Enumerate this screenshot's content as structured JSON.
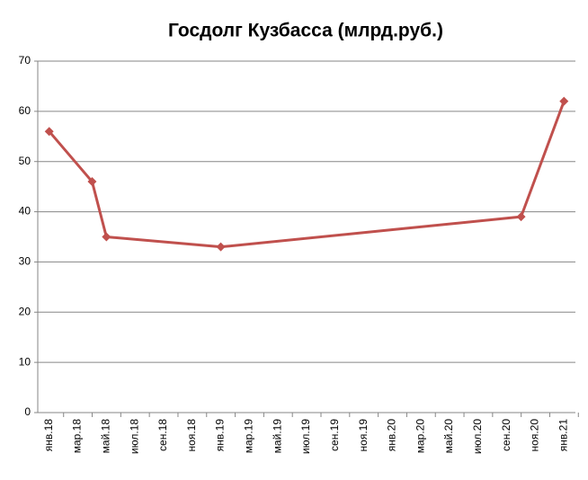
{
  "chart_data": {
    "type": "line",
    "title": "Госдолг Кузбасса (млрд.руб.)",
    "x": [
      "2018-01",
      "2018-04",
      "2018-05",
      "2019-01",
      "2020-10",
      "2021-01"
    ],
    "series": [
      {
        "name": "Госдолг Кузбасса",
        "color": "#c0504d",
        "values": [
          56,
          46,
          35,
          33,
          39,
          62
        ]
      }
    ],
    "xlim": [
      "2018-01",
      "2021-01"
    ],
    "xticks": [
      {
        "value": "2018-01",
        "label": "янв.18"
      },
      {
        "value": "2018-03",
        "label": "мар.18"
      },
      {
        "value": "2018-05",
        "label": "май.18"
      },
      {
        "value": "2018-07",
        "label": "июл.18"
      },
      {
        "value": "2018-09",
        "label": "сен.18"
      },
      {
        "value": "2018-11",
        "label": "ноя.18"
      },
      {
        "value": "2019-01",
        "label": "янв.19"
      },
      {
        "value": "2019-03",
        "label": "мар.19"
      },
      {
        "value": "2019-05",
        "label": "май.19"
      },
      {
        "value": "2019-07",
        "label": "июл.19"
      },
      {
        "value": "2019-09",
        "label": "сен.19"
      },
      {
        "value": "2019-11",
        "label": "ноя.19"
      },
      {
        "value": "2020-01",
        "label": "янв.20"
      },
      {
        "value": "2020-03",
        "label": "мар.20"
      },
      {
        "value": "2020-05",
        "label": "май.20"
      },
      {
        "value": "2020-07",
        "label": "июл.20"
      },
      {
        "value": "2020-09",
        "label": "сен.20"
      },
      {
        "value": "2020-11",
        "label": "ноя.20"
      },
      {
        "value": "2021-01",
        "label": "янв.21"
      }
    ],
    "ylim": [
      0,
      70
    ],
    "yticks": [
      0,
      10,
      20,
      30,
      40,
      50,
      60,
      70
    ],
    "grid": true
  }
}
